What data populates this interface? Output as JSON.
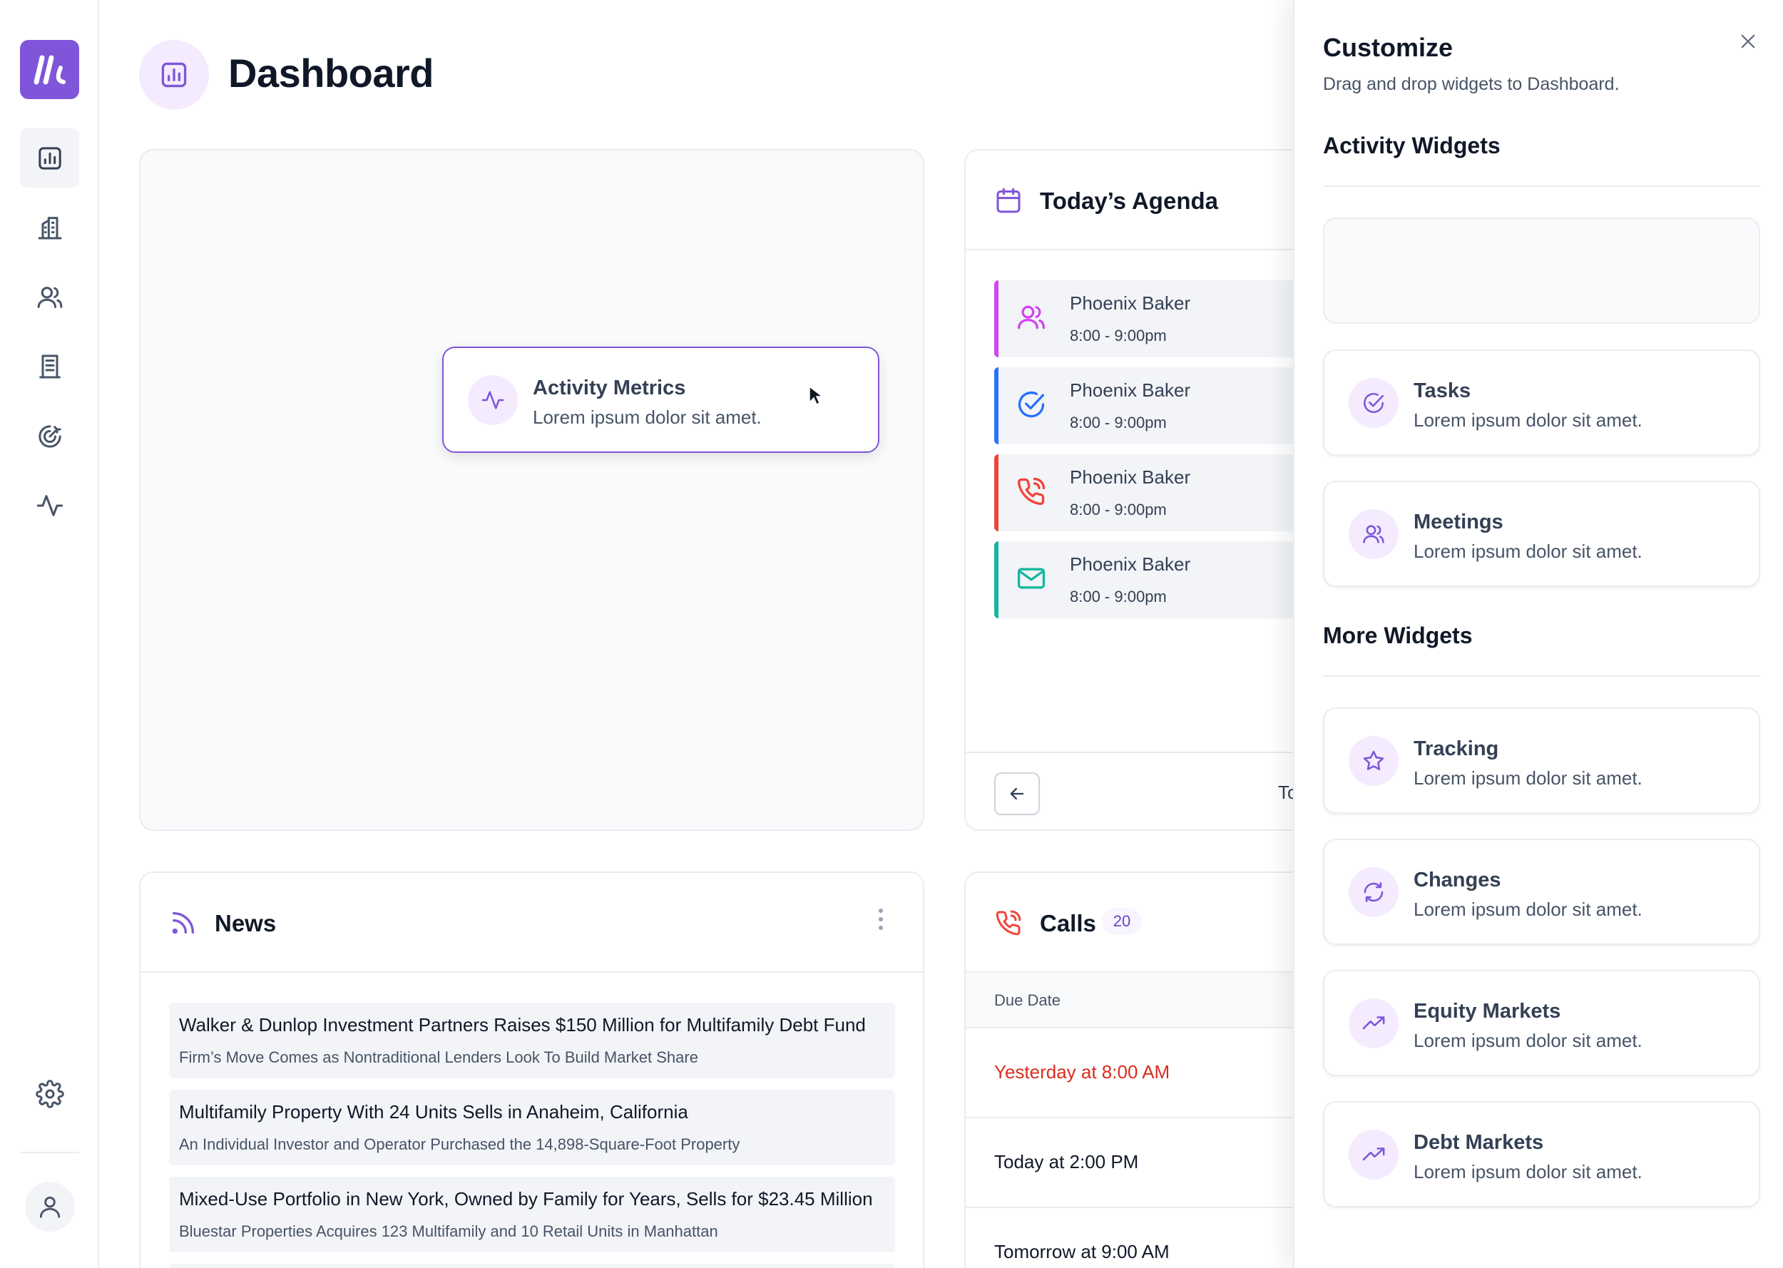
{
  "page": {
    "title": "Dashboard"
  },
  "sidebar": {
    "logo": "logo-icon",
    "items": [
      {
        "icon": "bar-chart-icon",
        "active": true
      },
      {
        "icon": "building-icon",
        "active": false
      },
      {
        "icon": "users-icon",
        "active": false
      },
      {
        "icon": "document-icon",
        "active": false
      },
      {
        "icon": "target-icon",
        "active": false
      },
      {
        "icon": "activity-icon",
        "active": false
      }
    ],
    "settings_icon": "gear-icon",
    "avatar_icon": "user-icon"
  },
  "dragging_widget": {
    "title": "Activity Metrics",
    "description": "Lorem ipsum dolor sit amet."
  },
  "agenda": {
    "title": "Today’s Agenda",
    "items": [
      {
        "name": "Phoenix Baker",
        "time": "8:00 - 9:00pm",
        "type": "meeting",
        "color": "#d444f1"
      },
      {
        "name": "Phoenix Baker",
        "time": "8:00 - 9:00pm",
        "type": "task",
        "color": "#2970ff"
      },
      {
        "name": "Phoenix Baker",
        "time": "8:00 - 9:00pm",
        "type": "call",
        "color": "#f04438"
      },
      {
        "name": "Phoenix Baker",
        "time": "8:00 - 9:00pm",
        "type": "email",
        "color": "#15b79e"
      }
    ],
    "footer_label": "To"
  },
  "news": {
    "title": "News",
    "items": [
      {
        "title": "Walker & Dunlop Investment Partners Raises $150 Million for Multifamily Debt Fund",
        "subtitle": "Firm’s Move Comes as Nontraditional Lenders Look To Build Market Share"
      },
      {
        "title": "Multifamily Property With 24 Units Sells in Anaheim, California",
        "subtitle": "An Individual Investor and Operator Purchased the 14,898-Square-Foot Property"
      },
      {
        "title": "Mixed-Use Portfolio in New York, Owned by Family for Years, Sells for $23.45 Million",
        "subtitle": "Bluestar Properties Acquires 123 Multifamily and 10 Retail Units in Manhattan"
      }
    ]
  },
  "calls": {
    "title": "Calls",
    "count": "20",
    "column_header": "Due Date",
    "rows": [
      {
        "due": "Yesterday at 8:00 AM",
        "overdue": true
      },
      {
        "due": "Today at 2:00 PM",
        "overdue": false
      },
      {
        "due": "Tomorrow at 9:00 AM",
        "overdue": false
      }
    ]
  },
  "customize": {
    "title": "Customize",
    "subtitle": "Drag and drop widgets to Dashboard.",
    "activity_section": "Activity Widgets",
    "more_section": "More Widgets",
    "activity_widgets": [
      {
        "title": "Tasks",
        "description": "Lorem ipsum dolor sit amet.",
        "icon": "check-circle-icon"
      },
      {
        "title": "Meetings",
        "description": "Lorem ipsum dolor sit amet.",
        "icon": "users-icon"
      }
    ],
    "more_widgets": [
      {
        "title": "Tracking",
        "description": "Lorem ipsum dolor sit amet.",
        "icon": "star-icon"
      },
      {
        "title": "Changes",
        "description": "Lorem ipsum dolor sit amet.",
        "icon": "refresh-icon"
      },
      {
        "title": "Equity Markets",
        "description": "Lorem ipsum dolor sit amet.",
        "icon": "trend-up-icon"
      },
      {
        "title": "Debt Markets",
        "description": "Lorem ipsum dolor sit amet.",
        "icon": "trend-up-icon"
      }
    ]
  },
  "colors": {
    "brand": "#7f56d9",
    "brand_light": "#f4ebff",
    "danger": "#d92d20",
    "border": "#eaecf0"
  }
}
